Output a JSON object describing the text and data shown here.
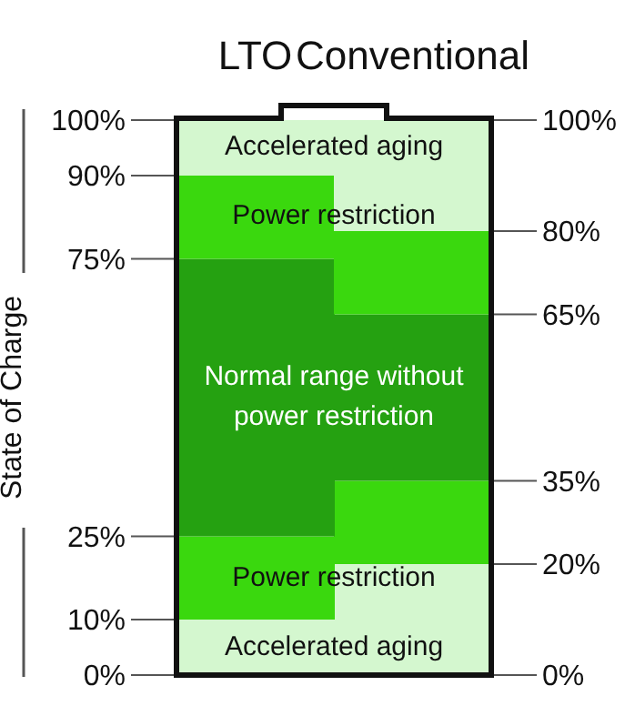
{
  "chart_data": {
    "type": "bar",
    "stacked": true,
    "categories": [
      "LTO",
      "Conventional"
    ],
    "series": [
      {
        "name": "Accelerated aging",
        "color": "#d4f7cf",
        "values": [
          10,
          20
        ]
      },
      {
        "name": "Power restriction",
        "color": "#3ad80e",
        "values": [
          15,
          15
        ]
      },
      {
        "name": "Normal range without power restriction",
        "color": "#25a111",
        "values": [
          50,
          30
        ]
      },
      {
        "name": "Power restriction",
        "color": "#3ad80e",
        "values": [
          15,
          15
        ]
      },
      {
        "name": "Accelerated aging",
        "color": "#d4f7cf",
        "values": [
          10,
          20
        ]
      }
    ],
    "ylabel": "State of Charge",
    "ylim": [
      0,
      100
    ],
    "yticks": [
      {
        "value": 0,
        "label": "0%"
      },
      {
        "value": 10,
        "label": "10%"
      },
      {
        "value": 25,
        "label": "25%"
      },
      {
        "value": 75,
        "label": "75%"
      },
      {
        "value": 90,
        "label": "90%"
      },
      {
        "value": 100,
        "label": "100%"
      }
    ],
    "y2lim": [
      0,
      100
    ],
    "y2ticks": [
      {
        "value": 0,
        "label": "0%"
      },
      {
        "value": 20,
        "label": "20%"
      },
      {
        "value": 35,
        "label": "35%"
      },
      {
        "value": 65,
        "label": "65%"
      },
      {
        "value": 80,
        "label": "80%"
      },
      {
        "value": 100,
        "label": "100%"
      }
    ],
    "legend": false
  }
}
